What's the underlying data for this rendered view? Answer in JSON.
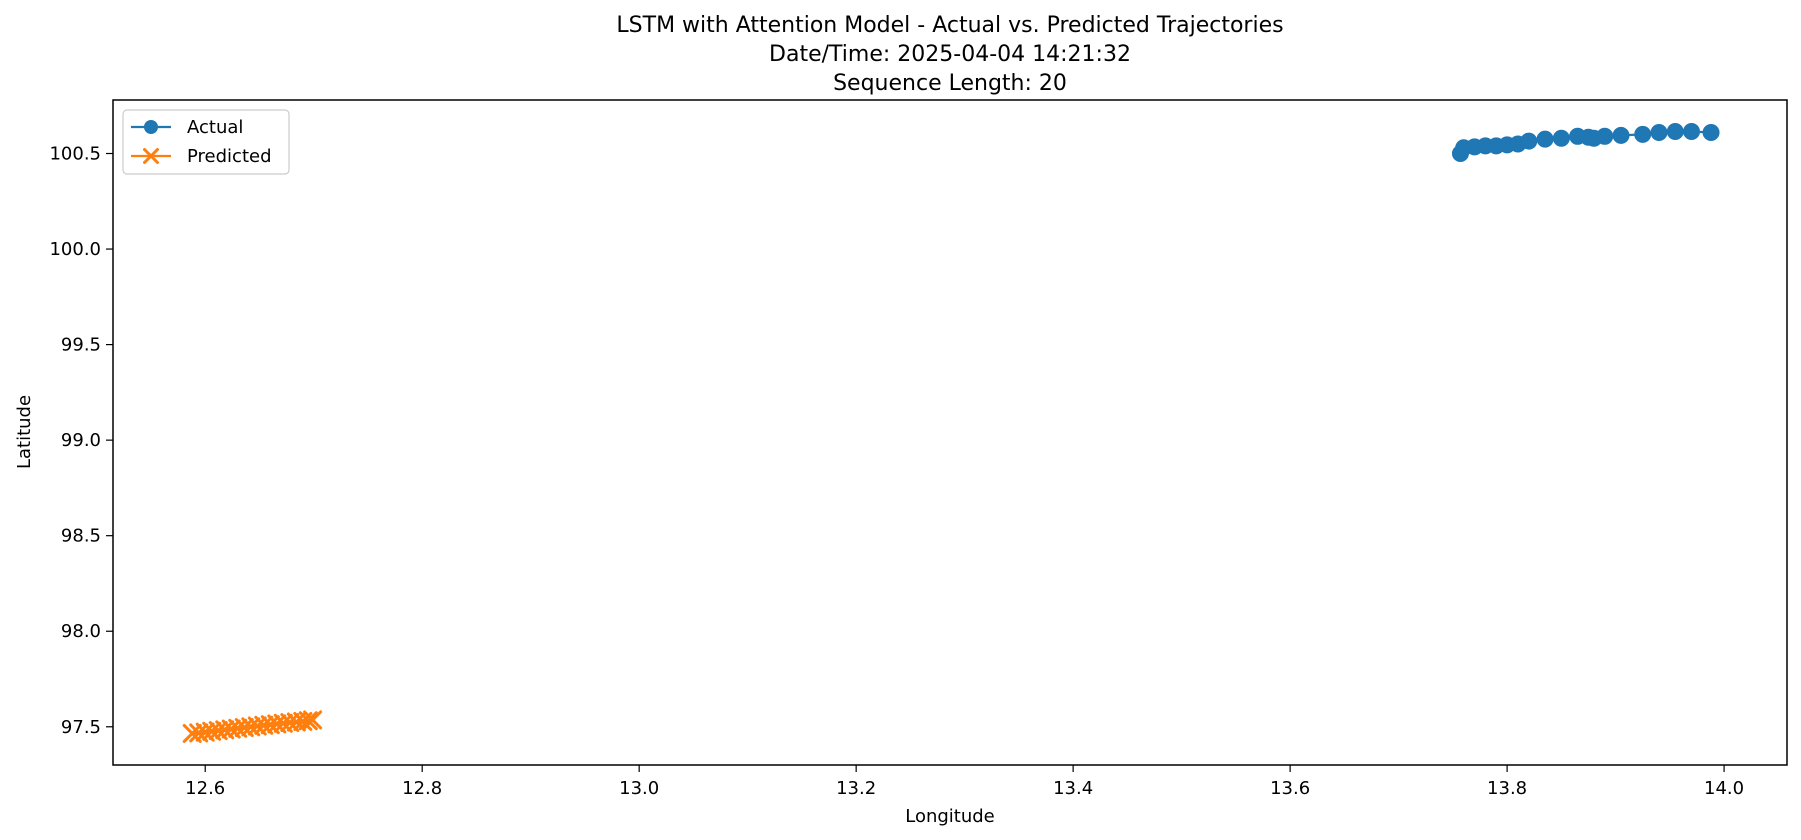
{
  "chart_data": {
    "type": "line",
    "title": "LSTM with Attention Model - Actual vs. Predicted Trajectories",
    "subtitle_lines": [
      "Date/Time: 2025-04-04 14:21:32",
      "Sequence Length: 20"
    ],
    "xlabel": "Longitude",
    "ylabel": "Latitude",
    "xlim": [
      12.515,
      14.058
    ],
    "ylim": [
      97.3,
      100.78
    ],
    "xticks": [
      12.6,
      12.8,
      13.0,
      13.2,
      13.4,
      13.6,
      13.8,
      14.0
    ],
    "xtick_labels": [
      "12.6",
      "12.8",
      "13.0",
      "13.2",
      "13.4",
      "13.6",
      "13.8",
      "14.0"
    ],
    "yticks": [
      97.5,
      98.0,
      98.5,
      99.0,
      99.5,
      100.0,
      100.5
    ],
    "ytick_labels": [
      "97.5",
      "98.0",
      "98.5",
      "99.0",
      "99.5",
      "100.0",
      "100.5"
    ],
    "grid": false,
    "legend_position": "top-left",
    "series": [
      {
        "name": "Actual",
        "marker": "circle",
        "color": "#1f77b4",
        "x": [
          13.757,
          13.76,
          13.77,
          13.78,
          13.79,
          13.8,
          13.81,
          13.82,
          13.835,
          13.85,
          13.865,
          13.875,
          13.88,
          13.89,
          13.905,
          13.925,
          13.94,
          13.955,
          13.97,
          13.988
        ],
        "y": [
          100.5,
          100.53,
          100.535,
          100.54,
          100.54,
          100.545,
          100.55,
          100.565,
          100.575,
          100.58,
          100.59,
          100.585,
          100.58,
          100.59,
          100.595,
          100.6,
          100.61,
          100.615,
          100.615,
          100.61
        ]
      },
      {
        "name": "Predicted",
        "marker": "x",
        "color": "#ff7f0e",
        "x": [
          12.588,
          12.594,
          12.6,
          12.606,
          12.612,
          12.618,
          12.624,
          12.63,
          12.636,
          12.642,
          12.648,
          12.654,
          12.66,
          12.666,
          12.672,
          12.678,
          12.684,
          12.69,
          12.695,
          12.699
        ],
        "y": [
          97.465,
          97.468,
          97.472,
          97.476,
          97.48,
          97.484,
          97.488,
          97.492,
          97.496,
          97.5,
          97.504,
          97.508,
          97.511,
          97.515,
          97.518,
          97.522,
          97.525,
          97.528,
          97.532,
          97.536
        ]
      }
    ]
  }
}
